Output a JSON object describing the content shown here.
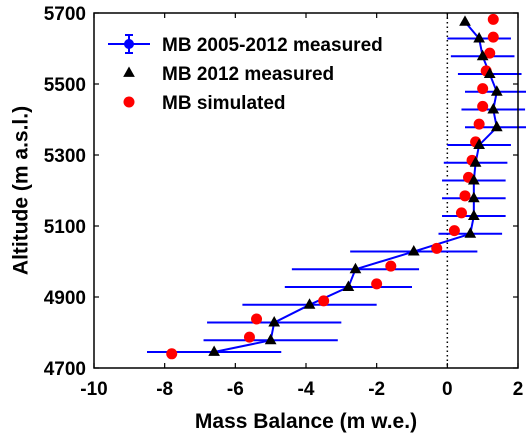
{
  "chart_data": {
    "type": "scatter",
    "xlabel": "Mass Balance (m w.e.)",
    "ylabel": "Altitude (m a.s.l.)",
    "xlim": [
      -10,
      2
    ],
    "ylim": [
      4700,
      5700
    ],
    "xticks": [
      -10,
      -8,
      -6,
      -4,
      -2,
      0,
      2
    ],
    "yticks": [
      4700,
      4900,
      5100,
      5300,
      5500,
      5700
    ],
    "xtick_labels": [
      "-10",
      "-8",
      "-6",
      "-4",
      "-2",
      "0",
      "2"
    ],
    "ytick_labels": [
      "4700",
      "4900",
      "5100",
      "5300",
      "5500",
      "5700"
    ],
    "reference_line_x": 0,
    "legend_position": "top-left",
    "series": [
      {
        "name": "MB 2005-2012 measured",
        "color": "#0000ff",
        "marker": "line-with-errorbars",
        "points": [
          {
            "x": -6.6,
            "y": 4745,
            "xerr": 1.9
          },
          {
            "x": -5.0,
            "y": 4778,
            "xerr": 1.9
          },
          {
            "x": -4.9,
            "y": 4828,
            "xerr": 1.9
          },
          {
            "x": -3.9,
            "y": 4878,
            "xerr": 1.9
          },
          {
            "x": -2.8,
            "y": 4928,
            "xerr": 1.8
          },
          {
            "x": -2.6,
            "y": 4978,
            "xerr": 1.8
          },
          {
            "x": -0.95,
            "y": 5028,
            "xerr": 1.8
          },
          {
            "x": 0.65,
            "y": 5078,
            "xerr": 0.9
          },
          {
            "x": 0.75,
            "y": 5128,
            "xerr": 0.9
          },
          {
            "x": 0.75,
            "y": 5178,
            "xerr": 0.9
          },
          {
            "x": 0.75,
            "y": 5228,
            "xerr": 0.9
          },
          {
            "x": 0.8,
            "y": 5278,
            "xerr": 0.9
          },
          {
            "x": 0.9,
            "y": 5328,
            "xerr": 0.9
          },
          {
            "x": 1.4,
            "y": 5378,
            "xerr": 0.9
          },
          {
            "x": 1.3,
            "y": 5428,
            "xerr": 0.9
          },
          {
            "x": 1.4,
            "y": 5478,
            "xerr": 0.9
          },
          {
            "x": 1.2,
            "y": 5528,
            "xerr": 0.9
          },
          {
            "x": 1.0,
            "y": 5578,
            "xerr": 0.9
          },
          {
            "x": 0.9,
            "y": 5628,
            "xerr": 0.9
          },
          {
            "x": 0.5,
            "y": 5675,
            "xerr": 0.0
          }
        ]
      },
      {
        "name": "MB 2012 measured",
        "color": "#000000",
        "marker": "triangle",
        "points": [
          {
            "x": -6.6,
            "y": 4745
          },
          {
            "x": -5.0,
            "y": 4778
          },
          {
            "x": -4.9,
            "y": 4828
          },
          {
            "x": -3.9,
            "y": 4878
          },
          {
            "x": -2.8,
            "y": 4928
          },
          {
            "x": -2.6,
            "y": 4978
          },
          {
            "x": -0.95,
            "y": 5028
          },
          {
            "x": 0.65,
            "y": 5078
          },
          {
            "x": 0.75,
            "y": 5128
          },
          {
            "x": 0.75,
            "y": 5178
          },
          {
            "x": 0.75,
            "y": 5228
          },
          {
            "x": 0.8,
            "y": 5278
          },
          {
            "x": 0.9,
            "y": 5328
          },
          {
            "x": 1.4,
            "y": 5378
          },
          {
            "x": 1.3,
            "y": 5428
          },
          {
            "x": 1.4,
            "y": 5478
          },
          {
            "x": 1.2,
            "y": 5528
          },
          {
            "x": 1.0,
            "y": 5578
          },
          {
            "x": 0.9,
            "y": 5628
          },
          {
            "x": 0.5,
            "y": 5675
          }
        ]
      },
      {
        "name": "MB simulated",
        "color": "#ff0000",
        "marker": "circle",
        "points": [
          {
            "x": -7.8,
            "y": 4740
          },
          {
            "x": -5.6,
            "y": 4787
          },
          {
            "x": -5.4,
            "y": 4838
          },
          {
            "x": -3.5,
            "y": 4889
          },
          {
            "x": -2.0,
            "y": 4937
          },
          {
            "x": -1.6,
            "y": 4987
          },
          {
            "x": -0.3,
            "y": 5037
          },
          {
            "x": 0.2,
            "y": 5087
          },
          {
            "x": 0.4,
            "y": 5137
          },
          {
            "x": 0.5,
            "y": 5185
          },
          {
            "x": 0.6,
            "y": 5237
          },
          {
            "x": 0.7,
            "y": 5285
          },
          {
            "x": 0.8,
            "y": 5337
          },
          {
            "x": 0.9,
            "y": 5387
          },
          {
            "x": 1.0,
            "y": 5437
          },
          {
            "x": 1.0,
            "y": 5487
          },
          {
            "x": 1.1,
            "y": 5537
          },
          {
            "x": 1.2,
            "y": 5587
          },
          {
            "x": 1.3,
            "y": 5632
          },
          {
            "x": 1.3,
            "y": 5682
          }
        ]
      }
    ]
  }
}
